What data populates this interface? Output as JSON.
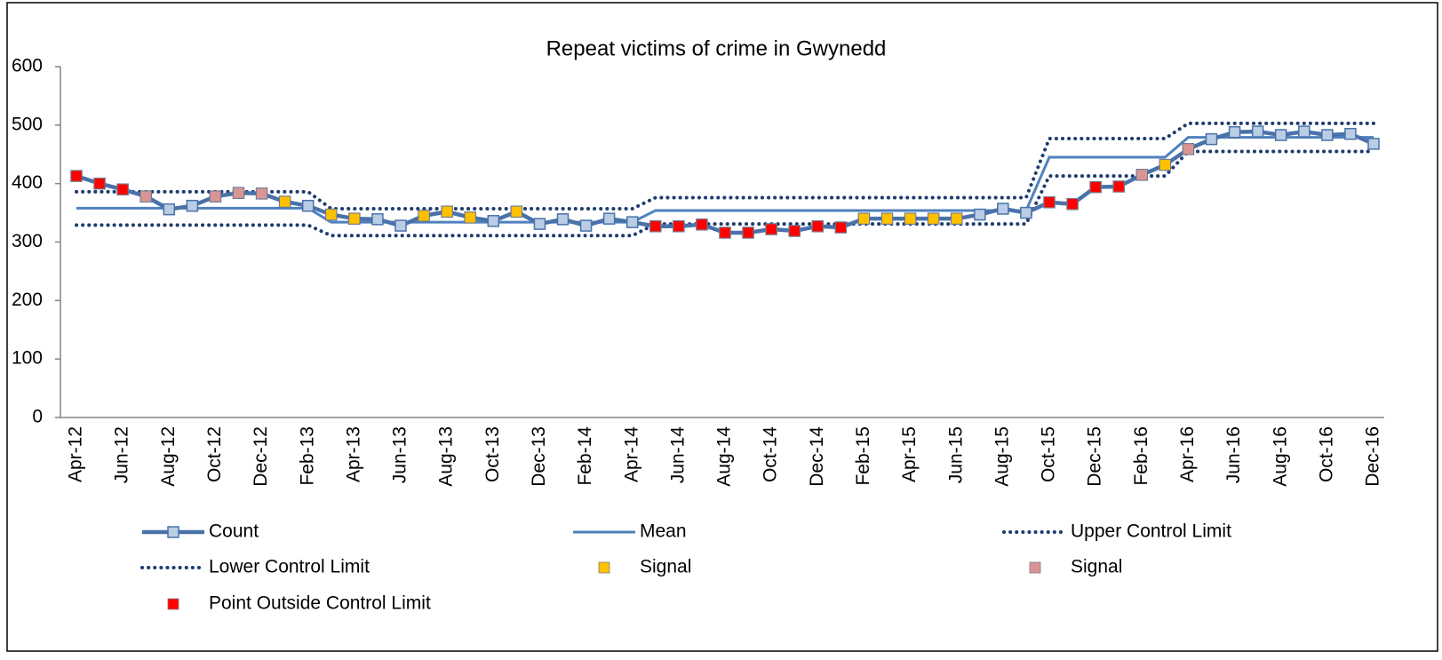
{
  "chart_data": {
    "type": "line",
    "title": "Repeat victims of crime in Gwynedd",
    "categories": [
      "Apr-12",
      null,
      "Jun-12",
      null,
      "Aug-12",
      null,
      "Oct-12",
      null,
      "Dec-12",
      null,
      "Feb-13",
      null,
      "Apr-13",
      null,
      "Jun-13",
      null,
      "Aug-13",
      null,
      "Oct-13",
      null,
      "Dec-13",
      null,
      "Feb-14",
      null,
      "Apr-14",
      null,
      "Jun-14",
      null,
      "Aug-14",
      null,
      "Oct-14",
      null,
      "Dec-14",
      null,
      "Feb-15",
      null,
      "Apr-15",
      null,
      "Jun-15",
      null,
      "Aug-15",
      null,
      "Oct-15",
      null,
      "Dec-15",
      null,
      "Feb-16",
      null,
      "Apr-16",
      null,
      "Jun-16",
      null,
      "Aug-16",
      null,
      "Oct-16",
      null,
      "Dec-16"
    ],
    "series": [
      {
        "name": "Count",
        "style": "line-marker",
        "color": "#4a72aa",
        "marker_color": "#b9cde5",
        "values": [
          413,
          400,
          390,
          378,
          356,
          362,
          378,
          384,
          383,
          369,
          362,
          347,
          340,
          339,
          328,
          345,
          352,
          342,
          336,
          352,
          331,
          339,
          328,
          340,
          334,
          327,
          327,
          330,
          316,
          316,
          322,
          319,
          327,
          325,
          340,
          340,
          340,
          340,
          340,
          347,
          357,
          350,
          368,
          365,
          394,
          395,
          415,
          432,
          459,
          476,
          488,
          489,
          483,
          489,
          483,
          485,
          468
        ]
      },
      {
        "name": "Mean",
        "style": "line",
        "color": "#4f81bd",
        "values": [
          358,
          358,
          358,
          358,
          358,
          358,
          358,
          358,
          358,
          358,
          358,
          334,
          334,
          334,
          334,
          334,
          334,
          334,
          334,
          334,
          334,
          334,
          334,
          334,
          334,
          354,
          354,
          354,
          354,
          354,
          354,
          354,
          354,
          354,
          354,
          354,
          354,
          354,
          354,
          354,
          354,
          354,
          445,
          445,
          445,
          445,
          445,
          445,
          479,
          479,
          479,
          479,
          479,
          479,
          479,
          479,
          479
        ]
      },
      {
        "name": "Upper Control Limit",
        "style": "dotted",
        "color": "#1f3c6e",
        "values": [
          386,
          386,
          386,
          386,
          386,
          386,
          386,
          386,
          386,
          386,
          386,
          357,
          357,
          357,
          357,
          357,
          357,
          357,
          357,
          357,
          357,
          357,
          357,
          357,
          357,
          376,
          376,
          376,
          376,
          376,
          376,
          376,
          376,
          376,
          376,
          376,
          376,
          376,
          376,
          376,
          376,
          376,
          477,
          477,
          477,
          477,
          477,
          477,
          503,
          503,
          503,
          503,
          503,
          503,
          503,
          503,
          503
        ]
      },
      {
        "name": "Lower Control Limit",
        "style": "dotted",
        "color": "#1f3c6e",
        "values": [
          329,
          329,
          329,
          329,
          329,
          329,
          329,
          329,
          329,
          329,
          329,
          311,
          311,
          311,
          311,
          311,
          311,
          311,
          311,
          311,
          311,
          311,
          311,
          311,
          311,
          331,
          331,
          331,
          331,
          331,
          331,
          331,
          331,
          331,
          331,
          331,
          331,
          331,
          331,
          331,
          331,
          331,
          413,
          413,
          413,
          413,
          413,
          413,
          455,
          455,
          455,
          455,
          455,
          455,
          455,
          455,
          455
        ]
      },
      {
        "name": "Signal",
        "style": "marker",
        "color": "#ffc000",
        "values": [
          null,
          null,
          null,
          null,
          null,
          null,
          null,
          null,
          null,
          369,
          null,
          347,
          340,
          null,
          null,
          345,
          352,
          342,
          null,
          352,
          null,
          null,
          null,
          null,
          null,
          null,
          null,
          null,
          null,
          null,
          null,
          null,
          null,
          null,
          340,
          340,
          340,
          340,
          340,
          null,
          null,
          null,
          null,
          null,
          null,
          null,
          null,
          432,
          null,
          null,
          null,
          null,
          null,
          null,
          null,
          null,
          null
        ]
      },
      {
        "name": "Signal",
        "style": "marker",
        "color": "#d99594",
        "values": [
          null,
          null,
          null,
          378,
          null,
          null,
          378,
          384,
          383,
          null,
          null,
          null,
          null,
          null,
          null,
          null,
          null,
          null,
          null,
          null,
          null,
          null,
          null,
          null,
          null,
          null,
          null,
          null,
          null,
          null,
          null,
          null,
          null,
          null,
          null,
          null,
          null,
          null,
          null,
          null,
          null,
          null,
          null,
          null,
          null,
          null,
          415,
          null,
          459,
          null,
          null,
          null,
          null,
          null,
          null,
          null,
          null
        ]
      },
      {
        "name": "Point Outside Control Limit",
        "style": "marker",
        "color": "#ff0000",
        "values": [
          413,
          400,
          390,
          null,
          null,
          null,
          null,
          null,
          null,
          null,
          null,
          null,
          null,
          null,
          null,
          null,
          null,
          null,
          null,
          null,
          null,
          null,
          null,
          null,
          null,
          327,
          327,
          330,
          316,
          316,
          322,
          319,
          327,
          325,
          null,
          null,
          null,
          null,
          null,
          null,
          null,
          null,
          368,
          365,
          394,
          395,
          null,
          null,
          null,
          null,
          null,
          null,
          null,
          null,
          null,
          null,
          null
        ]
      }
    ],
    "ylim": [
      0,
      600
    ],
    "yticks": [
      0,
      100,
      200,
      300,
      400,
      500,
      600
    ],
    "grid": false,
    "legend": "bottom"
  }
}
